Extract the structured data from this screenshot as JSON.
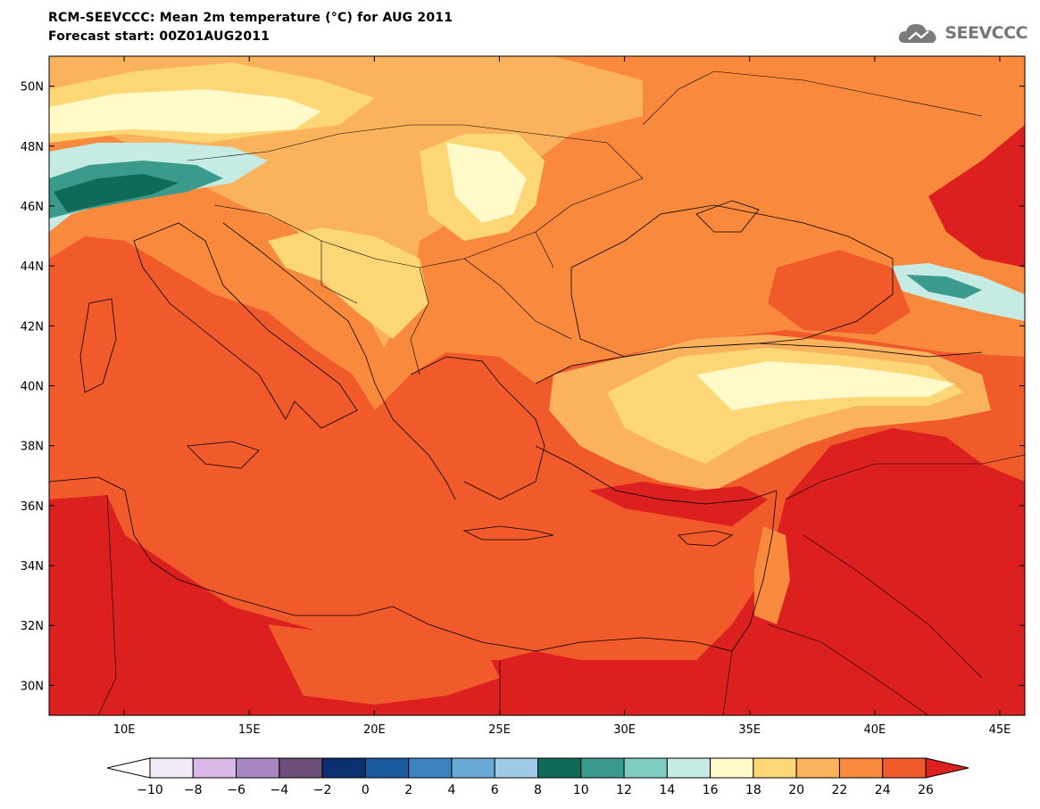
{
  "header": {
    "title": "RCM-SEEVCCC: Mean 2m temperature (°C) for AUG 2011",
    "subtitle": "Forecast start: 00Z01AUG2011",
    "logo_text": "SEEVCCC"
  },
  "map": {
    "lon_range": [
      7,
      46
    ],
    "lat_range": [
      29,
      51
    ],
    "lat_labels": [
      "50N",
      "48N",
      "46N",
      "44N",
      "42N",
      "40N",
      "38N",
      "36N",
      "34N",
      "32N",
      "30N"
    ],
    "lon_labels": [
      "10E",
      "15E",
      "20E",
      "25E",
      "30E",
      "35E",
      "40E",
      "45E"
    ]
  },
  "colorbar": {
    "labels": [
      "−10",
      "−8",
      "−6",
      "−4",
      "−2",
      "0",
      "2",
      "4",
      "6",
      "8",
      "10",
      "12",
      "14",
      "16",
      "18",
      "20",
      "22",
      "24",
      "26"
    ],
    "colors": {
      "lt_-10": "#ffffff",
      "-10_-8": "#f3eaf8",
      "-8_-6": "#dab8e6",
      "-6_-4": "#a887c0",
      "-4_-2": "#6b4f79",
      "-2_0": "#0c2f6f",
      "0_2": "#1b5a9e",
      "2_4": "#3b82c0",
      "4_6": "#6aa8d6",
      "6_8": "#9fc9e6",
      "8_10": "#0f6a57",
      "10_12": "#3a9a8b",
      "12_14": "#7ecdc0",
      "14_16": "#c6ebe4",
      "16_18": "#fffac8",
      "18_20": "#fdd675",
      "20_22": "#fbb25c",
      "22_24": "#f98a3d",
      "24_26": "#f15a2a",
      "gt_26": "#dc1f1f"
    }
  }
}
